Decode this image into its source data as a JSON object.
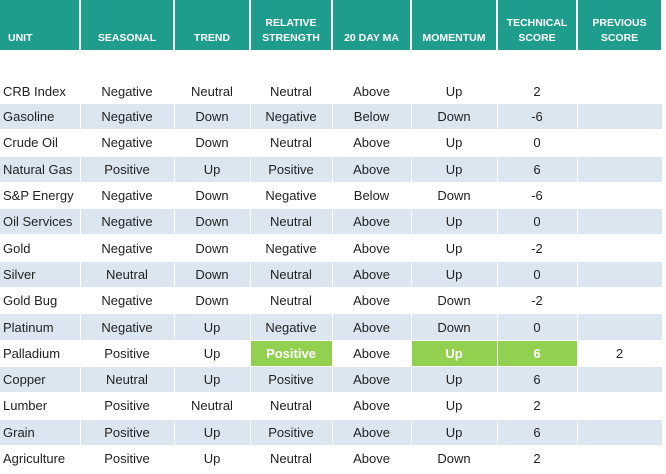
{
  "table": {
    "header": [
      "UNIT",
      "SEASONAL",
      "TREND",
      "RELATIVE STRENGTH",
      "20 DAY MA",
      "MOMENTUM",
      "TECHNICAL SCORE",
      "PREVIOUS SCORE"
    ],
    "rows": [
      [
        "CRB Index",
        "Negative",
        "Neutral",
        "Neutral",
        "Above",
        "Up",
        2,
        null
      ],
      [
        "Gasoline",
        "Negative",
        "Down",
        "Negative",
        "Below",
        "Down",
        -6,
        null
      ],
      [
        "Crude Oil",
        "Negative",
        "Down",
        "Neutral",
        "Above",
        "Up",
        0,
        null
      ],
      [
        "Natural Gas",
        "Positive",
        "Up",
        "Positive",
        "Above",
        "Up",
        6,
        null
      ],
      [
        "S&P Energy",
        "Negative",
        "Down",
        "Negative",
        "Below",
        "Down",
        -6,
        null
      ],
      [
        "Oil Services",
        "Negative",
        "Down",
        "Neutral",
        "Above",
        "Up",
        0,
        null
      ],
      [
        "Gold",
        "Negative",
        "Down",
        "Negative",
        "Above",
        "Up",
        -2,
        null
      ],
      [
        "Silver",
        "Neutral",
        "Down",
        "Neutral",
        "Above",
        "Up",
        0,
        null
      ],
      [
        "Gold Bug",
        "Negative",
        "Down",
        "Neutral",
        "Above",
        "Down",
        -2,
        null
      ],
      [
        "Platinum",
        "Negative",
        "Up",
        "Negative",
        "Above",
        "Down",
        0,
        null
      ],
      [
        "Palladium",
        "Positive",
        "Up",
        "Positive",
        "Above",
        "Up",
        6,
        2
      ],
      [
        "Copper",
        "Neutral",
        "Up",
        "Positive",
        "Above",
        "Up",
        6,
        null
      ],
      [
        "Lumber",
        "Positive",
        "Neutral",
        "Neutral",
        "Above",
        "Up",
        2,
        null
      ],
      [
        "Grain",
        "Positive",
        "Up",
        "Positive",
        "Above",
        "Up",
        6,
        null
      ],
      [
        "Agriculture",
        "Positive",
        "Up",
        "Neutral",
        "Above",
        "Down",
        2,
        null
      ]
    ],
    "header_color": "#1e9c8c",
    "stripe_color": "#dce6f1",
    "highlight_color": "#92d050",
    "highlighted_cells": [
      [
        10,
        3
      ],
      [
        10,
        5
      ],
      [
        10,
        6
      ]
    ]
  }
}
